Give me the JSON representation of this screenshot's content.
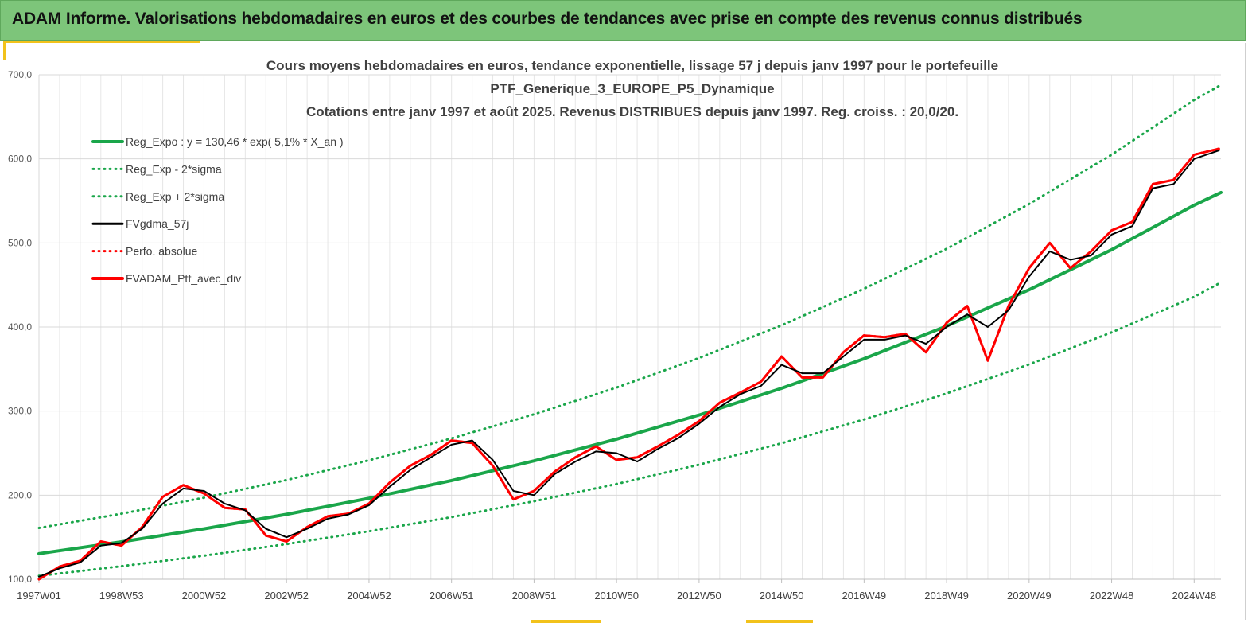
{
  "banner": {
    "title": "ADAM Informe. Valorisations hebdomadaires en euros et des courbes de tendances avec prise en compte des revenus connus distribués"
  },
  "colors": {
    "banner_bg": "#7dc57a",
    "accent": "#f2c21b",
    "trend": "#1aa64a",
    "smooth": "#000000",
    "portfolio": "#ff0000"
  },
  "chart_data": {
    "type": "line",
    "title_lines": [
      "Cours moyens hebdomadaires  en euros, tendance exponentielle, lissage 57 j depuis janv 1997 pour le portefeuille",
      "PTF_Generique_3_EUROPE_P5_Dynamique",
      "Cotations  entre janv 1997 et août 2025. Revenus DISTRIBUES depuis janv 1997. Reg. croiss. : 20,0/20."
    ],
    "xlabel": "",
    "ylabel": "",
    "ylim": [
      100,
      700
    ],
    "xlim": [
      1997.0,
      2025.65
    ],
    "y_ticks": [
      "100,0",
      "200,0",
      "300,0",
      "400,0",
      "500,0",
      "600,0",
      "700,0"
    ],
    "x_tick_labels": [
      "1997W01",
      "1998W53",
      "2000W52",
      "2002W52",
      "2004W52",
      "2006W51",
      "2008W51",
      "2010W50",
      "2012W50",
      "2014W50",
      "2016W49",
      "2018W49",
      "2020W49",
      "2022W48",
      "2024W48"
    ],
    "x_tick_positions": [
      1997.0,
      1999.0,
      2001.0,
      2003.0,
      2005.0,
      2007.0,
      2009.0,
      2011.0,
      2013.0,
      2015.0,
      2017.0,
      2019.0,
      2021.0,
      2023.0,
      2025.0
    ],
    "grid": true,
    "legend_position": "top-left",
    "series": [
      {
        "name": "Reg_Expo : y = 130,46 * exp( 5,1% *  X_an )",
        "style": "solid",
        "color": "#1aa64a",
        "x": [
          1997.0,
          1999.0,
          2001.0,
          2003.0,
          2005.0,
          2007.0,
          2009.0,
          2011.0,
          2013.0,
          2015.0,
          2017.0,
          2019.0,
          2021.0,
          2023.0,
          2025.0,
          2025.65
        ],
        "y": [
          130.5,
          144.5,
          160.0,
          177.2,
          196.3,
          217.4,
          240.8,
          266.7,
          295.3,
          327.1,
          362.2,
          401.1,
          444.3,
          492.0,
          544.9,
          560.0
        ]
      },
      {
        "name": "Reg_Exp - 2*sigma",
        "style": "dotted",
        "color": "#1aa64a",
        "x": [
          1997.0,
          1999.0,
          2001.0,
          2003.0,
          2005.0,
          2007.0,
          2009.0,
          2011.0,
          2013.0,
          2015.0,
          2017.0,
          2019.0,
          2021.0,
          2023.0,
          2025.0,
          2025.65
        ],
        "y": [
          104.0,
          115.5,
          128.0,
          141.8,
          157.1,
          173.9,
          192.7,
          213.3,
          236.3,
          261.7,
          290.0,
          321.0,
          355.5,
          393.7,
          436.0,
          453.0
        ]
      },
      {
        "name": "Reg_Exp + 2*sigma",
        "style": "dotted",
        "color": "#1aa64a",
        "x": [
          1997.0,
          1999.0,
          2001.0,
          2003.0,
          2005.0,
          2007.0,
          2009.0,
          2011.0,
          2013.0,
          2015.0,
          2017.0,
          2019.0,
          2021.0,
          2023.0,
          2025.0,
          2025.65
        ],
        "y": [
          161.0,
          178.0,
          197.0,
          218.0,
          241.5,
          267.5,
          296.2,
          328.0,
          363.2,
          402.0,
          445.5,
          493.0,
          546.3,
          605.0,
          670.0,
          688.0
        ]
      },
      {
        "name": "FVgdma_57j",
        "style": "solid",
        "color": "#000000",
        "x": [
          1997.0,
          1997.5,
          1998.0,
          1998.5,
          1999.0,
          1999.5,
          2000.0,
          2000.5,
          2001.0,
          2001.5,
          2002.0,
          2002.5,
          2003.0,
          2003.5,
          2004.0,
          2004.5,
          2005.0,
          2005.5,
          2006.0,
          2006.5,
          2007.0,
          2007.5,
          2008.0,
          2008.5,
          2009.0,
          2009.5,
          2010.0,
          2010.5,
          2011.0,
          2011.5,
          2012.0,
          2012.5,
          2013.0,
          2013.5,
          2014.0,
          2014.5,
          2015.0,
          2015.5,
          2016.0,
          2016.5,
          2017.0,
          2017.5,
          2018.0,
          2018.5,
          2019.0,
          2019.5,
          2020.0,
          2020.5,
          2021.0,
          2021.5,
          2022.0,
          2022.5,
          2023.0,
          2023.5,
          2024.0,
          2024.5,
          2025.0,
          2025.6
        ],
        "y": [
          103,
          113,
          120,
          140,
          143,
          160,
          190,
          208,
          205,
          190,
          182,
          160,
          150,
          160,
          172,
          177,
          188,
          210,
          230,
          245,
          260,
          265,
          242,
          205,
          200,
          225,
          240,
          252,
          250,
          240,
          255,
          268,
          285,
          305,
          320,
          330,
          355,
          345,
          345,
          365,
          385,
          385,
          390,
          380,
          400,
          415,
          400,
          420,
          460,
          490,
          480,
          485,
          510,
          520,
          565,
          570,
          600,
          610
        ]
      },
      {
        "name": "Perfo. absolue",
        "style": "dotted",
        "color": "#ff0000",
        "x": [
          1997.0,
          1997.5,
          1998.0,
          1998.5,
          1999.0,
          1999.5,
          2000.0,
          2000.5,
          2001.0,
          2001.5,
          2002.0,
          2002.5,
          2003.0,
          2003.5,
          2004.0,
          2004.5,
          2005.0,
          2005.5,
          2006.0,
          2006.5,
          2007.0,
          2007.5,
          2008.0,
          2008.5,
          2009.0,
          2009.5,
          2010.0,
          2010.5,
          2011.0,
          2011.5,
          2012.0,
          2012.5,
          2013.0,
          2013.5,
          2014.0,
          2014.5,
          2015.0,
          2015.5,
          2016.0,
          2016.5,
          2017.0,
          2017.5,
          2018.0,
          2018.5,
          2019.0,
          2019.5,
          2020.0,
          2020.5,
          2021.0,
          2021.5,
          2022.0,
          2022.5,
          2023.0,
          2023.5,
          2024.0,
          2024.5,
          2025.0,
          2025.6
        ],
        "y": [
          100,
          115,
          122,
          145,
          140,
          162,
          198,
          212,
          202,
          185,
          183,
          152,
          145,
          162,
          175,
          178,
          190,
          215,
          235,
          248,
          265,
          262,
          235,
          195,
          205,
          228,
          245,
          258,
          242,
          245,
          258,
          272,
          288,
          310,
          322,
          335,
          365,
          340,
          340,
          370,
          390,
          388,
          392,
          370,
          405,
          425,
          360,
          425,
          470,
          500,
          470,
          490,
          515,
          525,
          570,
          575,
          605,
          612
        ]
      },
      {
        "name": "FVADAM_Ptf_avec_div",
        "style": "solid",
        "color": "#ff0000",
        "x": [
          1997.0,
          1997.5,
          1998.0,
          1998.5,
          1999.0,
          1999.5,
          2000.0,
          2000.5,
          2001.0,
          2001.5,
          2002.0,
          2002.5,
          2003.0,
          2003.5,
          2004.0,
          2004.5,
          2005.0,
          2005.5,
          2006.0,
          2006.5,
          2007.0,
          2007.5,
          2008.0,
          2008.5,
          2009.0,
          2009.5,
          2010.0,
          2010.5,
          2011.0,
          2011.5,
          2012.0,
          2012.5,
          2013.0,
          2013.5,
          2014.0,
          2014.5,
          2015.0,
          2015.5,
          2016.0,
          2016.5,
          2017.0,
          2017.5,
          2018.0,
          2018.5,
          2019.0,
          2019.5,
          2020.0,
          2020.5,
          2021.0,
          2021.5,
          2022.0,
          2022.5,
          2023.0,
          2023.5,
          2024.0,
          2024.5,
          2025.0,
          2025.6
        ],
        "y": [
          100,
          115,
          122,
          145,
          140,
          162,
          198,
          212,
          202,
          185,
          183,
          152,
          145,
          162,
          175,
          178,
          190,
          215,
          235,
          248,
          265,
          262,
          235,
          195,
          205,
          228,
          245,
          258,
          242,
          245,
          258,
          272,
          288,
          310,
          322,
          335,
          365,
          340,
          340,
          370,
          390,
          388,
          392,
          370,
          405,
          425,
          360,
          425,
          470,
          500,
          470,
          490,
          515,
          525,
          570,
          575,
          605,
          612
        ]
      }
    ]
  }
}
